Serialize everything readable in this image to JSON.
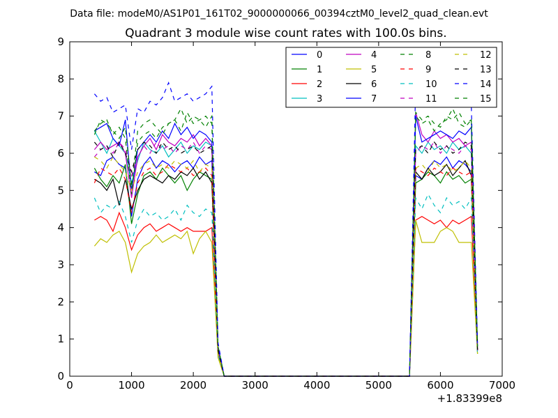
{
  "suptitle": "Data file: modeM0/AS1P01_161T02_9000000066_00394cztM0_level2_quad_clean.evt",
  "chart_data": {
    "type": "line",
    "title": "Quadrant 3 module wise count rates with 100.0s bins.",
    "xlabel": "",
    "ylabel": "",
    "x_offset_label": "+1.83399e8",
    "xlim": [
      0,
      7000
    ],
    "ylim": [
      0,
      9
    ],
    "x_ticks": [
      0,
      1000,
      2000,
      3000,
      4000,
      5000,
      6000,
      7000
    ],
    "y_ticks": [
      0,
      1,
      2,
      3,
      4,
      5,
      6,
      7,
      8,
      9
    ],
    "grid": false,
    "legend_position": "top-right",
    "legend_columns": 4,
    "x": [
      400,
      500,
      600,
      700,
      800,
      900,
      1000,
      1100,
      1200,
      1300,
      1400,
      1500,
      1600,
      1700,
      1800,
      1900,
      2000,
      2100,
      2200,
      2300,
      2400,
      2500,
      2600,
      2700,
      2800,
      2900,
      3000,
      3100,
      3200,
      3300,
      3400,
      3500,
      3600,
      3700,
      3800,
      3900,
      4000,
      4100,
      4200,
      4300,
      4400,
      4500,
      4600,
      4700,
      4800,
      4900,
      5000,
      5100,
      5200,
      5300,
      5400,
      5500,
      5600,
      5700,
      5800,
      5900,
      6000,
      6100,
      6200,
      6300,
      6400,
      6500,
      6600
    ],
    "series": [
      {
        "name": "0",
        "color": "#0000ff",
        "dash": "solid",
        "values": [
          5.5,
          5.4,
          5.8,
          5.9,
          5.7,
          5.6,
          4.3,
          5.3,
          5.7,
          5.9,
          5.6,
          5.8,
          5.7,
          5.5,
          5.7,
          5.8,
          5.6,
          5.9,
          5.7,
          5.8,
          0.8,
          0,
          0,
          0,
          0,
          0,
          0,
          0,
          0,
          0,
          0,
          0,
          0,
          0,
          0,
          0,
          0,
          0,
          0,
          0,
          0,
          0,
          0,
          0,
          0,
          0,
          0,
          0,
          0,
          0,
          0,
          0,
          5.4,
          5.3,
          5.6,
          5.8,
          5.7,
          5.9,
          5.6,
          5.8,
          5.7,
          5.5,
          0.8
        ]
      },
      {
        "name": "1",
        "color": "#008000",
        "dash": "solid",
        "values": [
          5.6,
          5.3,
          5.1,
          5.4,
          5.2,
          5.7,
          4.1,
          4.9,
          5.4,
          5.5,
          5.3,
          5.6,
          5.4,
          5.2,
          5.4,
          5.0,
          5.3,
          5.5,
          5.4,
          5.3,
          0.7,
          0,
          0,
          0,
          0,
          0,
          0,
          0,
          0,
          0,
          0,
          0,
          0,
          0,
          0,
          0,
          0,
          0,
          0,
          0,
          0,
          0,
          0,
          0,
          0,
          0,
          0,
          0,
          0,
          0,
          0,
          0,
          5.2,
          5.3,
          5.5,
          5.4,
          5.2,
          5.5,
          5.3,
          5.4,
          5.2,
          5.3,
          0.7
        ]
      },
      {
        "name": "2",
        "color": "#ff0000",
        "dash": "solid",
        "values": [
          4.2,
          4.3,
          4.2,
          3.9,
          4.4,
          4.0,
          3.4,
          3.8,
          4.0,
          4.1,
          3.9,
          4.0,
          4.1,
          4.0,
          3.9,
          4.0,
          3.9,
          3.9,
          3.9,
          4.0,
          0.6,
          0,
          0,
          0,
          0,
          0,
          0,
          0,
          0,
          0,
          0,
          0,
          0,
          0,
          0,
          0,
          0,
          0,
          0,
          0,
          0,
          0,
          0,
          0,
          0,
          0,
          0,
          0,
          0,
          0,
          0,
          0,
          4.2,
          4.3,
          4.2,
          4.1,
          4.2,
          4.0,
          4.2,
          4.1,
          4.2,
          4.3,
          0.7
        ]
      },
      {
        "name": "3",
        "color": "#00bfbf",
        "dash": "solid",
        "values": [
          6.6,
          6.3,
          6.0,
          6.4,
          6.2,
          6.0,
          5.2,
          5.8,
          6.3,
          6.1,
          6.0,
          6.2,
          5.9,
          6.1,
          6.3,
          6.0,
          6.2,
          6.1,
          6.3,
          6.2,
          0.6,
          0,
          0,
          0,
          0,
          0,
          0,
          0,
          0,
          0,
          0,
          0,
          0,
          0,
          0,
          0,
          0,
          0,
          0,
          0,
          0,
          0,
          0,
          0,
          0,
          0,
          0,
          0,
          0,
          0,
          0,
          0,
          6.2,
          6.0,
          6.3,
          6.1,
          6.2,
          6.0,
          6.3,
          6.1,
          6.2,
          6.0,
          0.6
        ]
      },
      {
        "name": "4",
        "color": "#bf00bf",
        "dash": "solid",
        "values": [
          6.1,
          6.3,
          6.1,
          6.2,
          6.3,
          6.0,
          4.8,
          5.9,
          6.2,
          6.4,
          6.1,
          6.5,
          6.3,
          6.2,
          6.4,
          6.3,
          6.5,
          6.2,
          6.4,
          6.2,
          0.7,
          0,
          0,
          0,
          0,
          0,
          0,
          0,
          0,
          0,
          0,
          0,
          0,
          0,
          0,
          0,
          0,
          0,
          0,
          0,
          0,
          0,
          0,
          0,
          0,
          0,
          0,
          0,
          0,
          0,
          0,
          0,
          7.1,
          6.5,
          6.3,
          6.6,
          6.4,
          6.5,
          6.3,
          6.4,
          6.2,
          6.3,
          0.7
        ]
      },
      {
        "name": "5",
        "color": "#bfbf00",
        "dash": "solid",
        "values": [
          3.5,
          3.7,
          3.6,
          3.8,
          3.9,
          3.6,
          2.8,
          3.3,
          3.5,
          3.6,
          3.8,
          3.6,
          3.7,
          3.8,
          3.7,
          3.9,
          3.3,
          3.7,
          3.9,
          3.6,
          0.5,
          0,
          0,
          0,
          0,
          0,
          0,
          0,
          0,
          0,
          0,
          0,
          0,
          0,
          0,
          0,
          0,
          0,
          0,
          0,
          0,
          0,
          0,
          0,
          0,
          0,
          0,
          0,
          0,
          0,
          0,
          0,
          4.2,
          3.6,
          3.6,
          3.6,
          3.9,
          4.0,
          3.9,
          3.6,
          3.6,
          3.6,
          0.6
        ]
      },
      {
        "name": "6",
        "color": "#000000",
        "dash": "solid",
        "values": [
          5.3,
          5.2,
          5.0,
          5.3,
          4.6,
          5.3,
          4.5,
          5.0,
          5.3,
          5.4,
          5.3,
          5.2,
          5.4,
          5.3,
          5.5,
          5.4,
          5.6,
          5.3,
          5.5,
          5.2,
          0.7,
          0,
          0,
          0,
          0,
          0,
          0,
          0,
          0,
          0,
          0,
          0,
          0,
          0,
          0,
          0,
          0,
          0,
          0,
          0,
          0,
          0,
          0,
          0,
          0,
          0,
          0,
          0,
          0,
          0,
          0,
          0,
          5.5,
          5.3,
          5.6,
          5.4,
          5.5,
          5.7,
          5.4,
          5.6,
          5.8,
          5.4,
          0.7
        ]
      },
      {
        "name": "7",
        "color": "#0000ff",
        "dash": "solid",
        "values": [
          6.6,
          6.7,
          6.8,
          6.4,
          6.2,
          6.9,
          5.0,
          6.1,
          6.3,
          6.5,
          6.3,
          6.6,
          6.4,
          6.8,
          6.5,
          6.7,
          6.4,
          6.6,
          6.5,
          6.3,
          0.8,
          0,
          0,
          0,
          0,
          0,
          0,
          0,
          0,
          0,
          0,
          0,
          0,
          0,
          0,
          0,
          0,
          0,
          0,
          0,
          0,
          0,
          0,
          0,
          0,
          0,
          0,
          0,
          0,
          0,
          0,
          0,
          7.0,
          6.3,
          6.4,
          6.5,
          6.6,
          6.5,
          6.4,
          6.6,
          6.5,
          6.7,
          0.8
        ]
      },
      {
        "name": "8",
        "color": "#008000",
        "dash": "dashed",
        "values": [
          6.5,
          6.9,
          6.8,
          6.6,
          6.4,
          6.7,
          5.1,
          6.6,
          6.8,
          6.9,
          6.7,
          6.5,
          6.8,
          6.9,
          7.2,
          6.8,
          7.0,
          6.9,
          6.7,
          7.0,
          0.8,
          0,
          0,
          0,
          0,
          0,
          0,
          0,
          0,
          0,
          0,
          0,
          0,
          0,
          0,
          0,
          0,
          0,
          0,
          0,
          0,
          0,
          0,
          0,
          0,
          0,
          0,
          0,
          0,
          0,
          0,
          0,
          7.0,
          6.8,
          6.9,
          6.6,
          6.8,
          6.9,
          7.2,
          6.8,
          6.7,
          6.9,
          0.8
        ]
      },
      {
        "name": "9",
        "color": "#ff0000",
        "dash": "dashed",
        "values": [
          5.2,
          5.6,
          5.5,
          5.4,
          5.6,
          5.3,
          4.4,
          5.2,
          5.5,
          5.6,
          5.4,
          5.5,
          5.7,
          5.6,
          5.5,
          5.6,
          5.4,
          5.5,
          5.6,
          5.4,
          0.7,
          0,
          0,
          0,
          0,
          0,
          0,
          0,
          0,
          0,
          0,
          0,
          0,
          0,
          0,
          0,
          0,
          0,
          0,
          0,
          0,
          0,
          0,
          0,
          0,
          0,
          0,
          0,
          0,
          0,
          0,
          0,
          5.6,
          5.5,
          5.4,
          5.6,
          5.5,
          5.4,
          5.6,
          5.5,
          5.4,
          5.5,
          0.7
        ]
      },
      {
        "name": "10",
        "color": "#00bfbf",
        "dash": "dashed",
        "values": [
          4.8,
          4.4,
          4.6,
          4.5,
          4.7,
          4.3,
          3.6,
          4.2,
          4.5,
          4.3,
          4.4,
          4.2,
          4.3,
          4.5,
          4.2,
          4.6,
          4.4,
          4.3,
          4.5,
          4.4,
          0.6,
          0,
          0,
          0,
          0,
          0,
          0,
          0,
          0,
          0,
          0,
          0,
          0,
          0,
          0,
          0,
          0,
          0,
          0,
          0,
          0,
          0,
          0,
          0,
          0,
          0,
          0,
          0,
          0,
          0,
          0,
          0,
          4.8,
          4.5,
          4.9,
          4.6,
          4.4,
          4.8,
          4.6,
          4.7,
          4.5,
          4.8,
          0.6
        ]
      },
      {
        "name": "11",
        "color": "#bf00bf",
        "dash": "dashed",
        "values": [
          5.9,
          6.1,
          6.2,
          6.0,
          6.3,
          6.1,
          5.4,
          5.9,
          6.2,
          6.0,
          6.3,
          6.1,
          6.2,
          6.0,
          6.2,
          6.1,
          6.3,
          6.0,
          6.2,
          6.1,
          0.7,
          0,
          0,
          0,
          0,
          0,
          0,
          0,
          0,
          0,
          0,
          0,
          0,
          0,
          0,
          0,
          0,
          0,
          0,
          0,
          0,
          0,
          0,
          0,
          0,
          0,
          0,
          0,
          0,
          0,
          0,
          0,
          6.0,
          6.2,
          6.1,
          6.3,
          6.0,
          6.2,
          6.1,
          6.0,
          6.2,
          6.1,
          0.7
        ]
      },
      {
        "name": "12",
        "color": "#bfbf00",
        "dash": "dashed",
        "values": [
          5.9,
          5.8,
          5.6,
          5.9,
          5.7,
          5.5,
          5.0,
          5.5,
          5.7,
          5.8,
          5.6,
          5.7,
          5.6,
          5.8,
          5.7,
          5.6,
          5.8,
          5.5,
          5.7,
          5.6,
          0.6,
          0,
          0,
          0,
          0,
          0,
          0,
          0,
          0,
          0,
          0,
          0,
          0,
          0,
          0,
          0,
          0,
          0,
          0,
          0,
          0,
          0,
          0,
          0,
          0,
          0,
          0,
          0,
          0,
          0,
          0,
          0,
          5.6,
          5.7,
          5.5,
          5.8,
          5.6,
          5.7,
          5.5,
          5.6,
          5.8,
          5.6,
          0.6
        ]
      },
      {
        "name": "13",
        "color": "#000000",
        "dash": "dashed",
        "values": [
          6.3,
          6.1,
          6.2,
          5.9,
          6.3,
          6.0,
          5.5,
          6.1,
          6.3,
          6.2,
          6.0,
          6.3,
          6.1,
          6.2,
          6.0,
          6.1,
          6.2,
          6.0,
          6.1,
          6.2,
          0.7,
          0,
          0,
          0,
          0,
          0,
          0,
          0,
          0,
          0,
          0,
          0,
          0,
          0,
          0,
          0,
          0,
          0,
          0,
          0,
          0,
          0,
          0,
          0,
          0,
          0,
          0,
          0,
          0,
          0,
          0,
          0,
          6.1,
          6.2,
          6.0,
          6.3,
          6.1,
          6.2,
          6.0,
          6.1,
          6.3,
          6.2,
          0.7
        ]
      },
      {
        "name": "14",
        "color": "#0000ff",
        "dash": "dashed",
        "values": [
          7.6,
          7.4,
          7.5,
          7.1,
          7.2,
          7.3,
          6.1,
          7.2,
          7.1,
          7.4,
          7.3,
          7.5,
          7.9,
          7.4,
          7.5,
          7.6,
          7.4,
          7.5,
          7.6,
          7.8,
          0.9,
          0,
          0,
          0,
          0,
          0,
          0,
          0,
          0,
          0,
          0,
          0,
          0,
          0,
          0,
          0,
          0,
          0,
          0,
          0,
          0,
          0,
          0,
          0,
          0,
          0,
          0,
          0,
          0,
          0,
          0,
          0,
          7.9,
          7.3,
          7.6,
          7.5,
          7.8,
          8.0,
          7.6,
          7.4,
          7.7,
          7.3,
          0.9
        ]
      },
      {
        "name": "15",
        "color": "#008000",
        "dash": "dashed",
        "values": [
          6.6,
          6.8,
          6.9,
          6.5,
          6.7,
          6.4,
          4.9,
          6.3,
          6.5,
          6.6,
          6.4,
          6.7,
          6.8,
          6.9,
          6.6,
          7.1,
          6.8,
          6.9,
          7.0,
          6.8,
          0.8,
          0,
          0,
          0,
          0,
          0,
          0,
          0,
          0,
          0,
          0,
          0,
          0,
          0,
          0,
          0,
          0,
          0,
          0,
          0,
          0,
          0,
          0,
          0,
          0,
          0,
          0,
          0,
          0,
          0,
          0,
          0,
          7.1,
          6.9,
          7.0,
          6.8,
          6.7,
          7.0,
          6.9,
          7.1,
          6.8,
          6.9,
          0.8
        ]
      }
    ]
  }
}
